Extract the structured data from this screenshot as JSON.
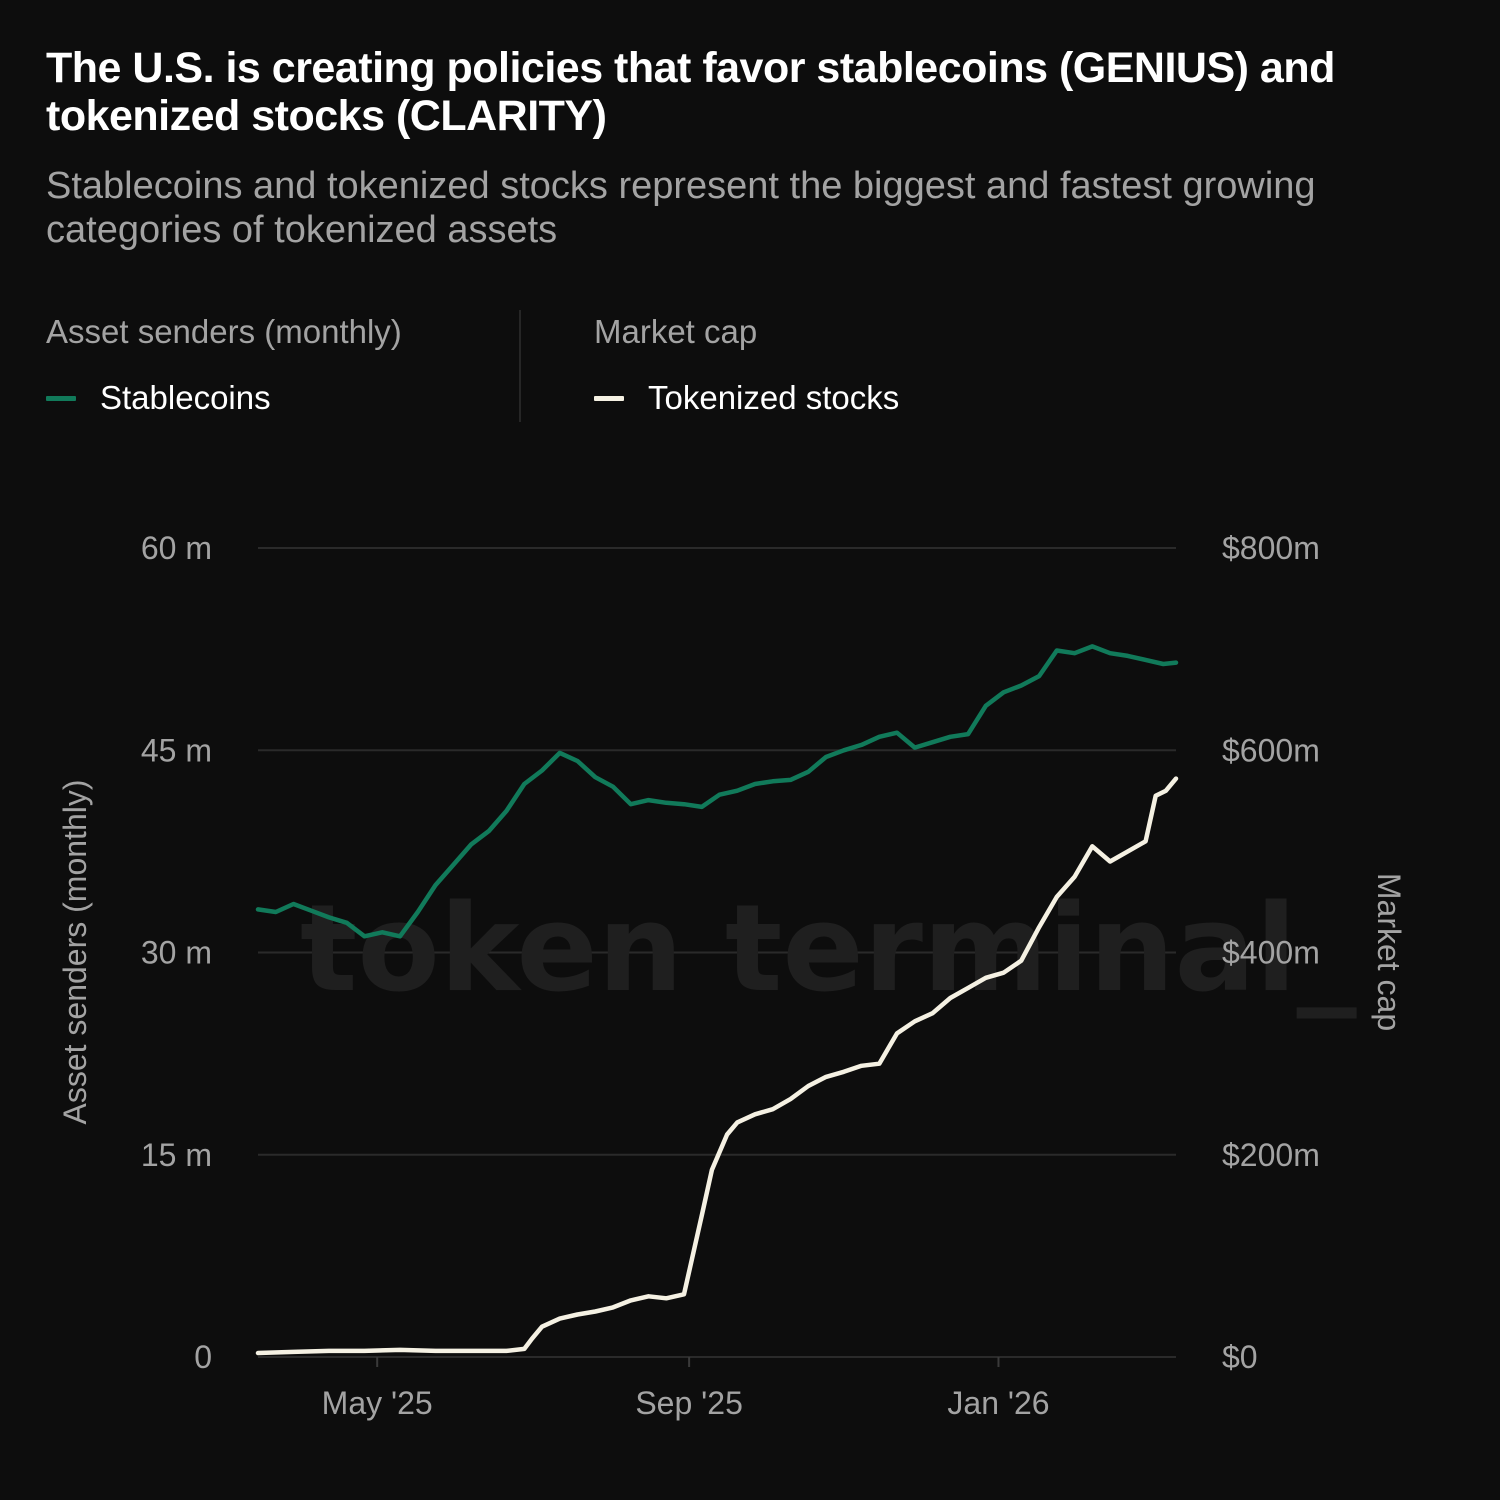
{
  "header": {
    "title": "The U.S. is creating policies that favor stablecoins (GENIUS) and tokenized stocks (CLARITY)",
    "subtitle": "Stablecoins and tokenized stocks represent the biggest and fastest growing categories of tokenized assets"
  },
  "legend": {
    "left_group": {
      "heading": "Asset senders (monthly)",
      "item": "Stablecoins"
    },
    "right_group": {
      "heading": "Market cap",
      "item": "Tokenized stocks"
    }
  },
  "watermark": "token terminal_",
  "colors": {
    "background": "#0d0d0d",
    "stablecoins": "#117a5a",
    "tokenized_stocks": "#f5f1e3",
    "grid": "#2a2a2a",
    "muted_text": "#a3a3a3"
  },
  "chart_data": {
    "type": "line",
    "title": "The U.S. is creating policies that favor stablecoins (GENIUS) and tokenized stocks (CLARITY)",
    "subtitle": "Stablecoins and tokenized stocks represent the biggest and fastest growing categories of tokenized assets",
    "xlabel": "",
    "x_tick_labels": [
      "May '25",
      "Sep '25",
      "Jan '26"
    ],
    "x_tick_dates": [
      "2025-05-01",
      "2025-09-01",
      "2026-01-01"
    ],
    "x_range": [
      "2025-03-15",
      "2026-03-12"
    ],
    "y_left": {
      "label": "Asset senders (monthly)",
      "range": [
        0,
        60
      ],
      "unit": "m",
      "tick_labels": [
        "0",
        "15 m",
        "30 m",
        "45 m",
        "60 m"
      ],
      "tick_values": [
        0,
        15,
        30,
        45,
        60
      ]
    },
    "y_right": {
      "label": "Market cap",
      "range": [
        0,
        800
      ],
      "unit": "$m",
      "tick_labels": [
        "$0",
        "$200m",
        "$400m",
        "$600m",
        "$800m"
      ],
      "tick_values": [
        0,
        200,
        400,
        600,
        800
      ]
    },
    "grid": true,
    "legend_position": "top-left",
    "series": [
      {
        "name": "Stablecoins",
        "axis": "left",
        "x": [
          "2025-03-15",
          "2025-03-22",
          "2025-03-29",
          "2025-04-05",
          "2025-04-12",
          "2025-04-19",
          "2025-04-26",
          "2025-05-03",
          "2025-05-10",
          "2025-05-17",
          "2025-05-24",
          "2025-05-31",
          "2025-06-07",
          "2025-06-14",
          "2025-06-21",
          "2025-06-28",
          "2025-07-05",
          "2025-07-12",
          "2025-07-19",
          "2025-07-26",
          "2025-08-02",
          "2025-08-09",
          "2025-08-16",
          "2025-08-23",
          "2025-08-30",
          "2025-09-06",
          "2025-09-13",
          "2025-09-20",
          "2025-09-27",
          "2025-10-04",
          "2025-10-11",
          "2025-10-18",
          "2025-10-25",
          "2025-11-01",
          "2025-11-08",
          "2025-11-15",
          "2025-11-22",
          "2025-11-29",
          "2025-12-06",
          "2025-12-13",
          "2025-12-20",
          "2025-12-27",
          "2026-01-03",
          "2026-01-10",
          "2026-01-17",
          "2026-01-24",
          "2026-01-31",
          "2026-02-07",
          "2026-02-14",
          "2026-02-21",
          "2026-02-28",
          "2026-03-07",
          "2026-03-12"
        ],
        "values": [
          33.2,
          33.0,
          33.6,
          33.1,
          32.6,
          32.2,
          31.2,
          31.5,
          31.2,
          33.0,
          35.0,
          36.5,
          38.0,
          39.0,
          40.5,
          42.5,
          43.5,
          44.8,
          44.2,
          43.0,
          42.3,
          41.0,
          41.3,
          41.1,
          41.0,
          40.8,
          41.7,
          42.0,
          42.5,
          42.7,
          42.8,
          43.4,
          44.5,
          45.0,
          45.4,
          46.0,
          46.3,
          45.2,
          45.6,
          46.0,
          46.2,
          48.3,
          49.3,
          49.8,
          50.5,
          52.4,
          52.2,
          52.7,
          52.2,
          52.0,
          51.7,
          51.4,
          51.5
        ]
      },
      {
        "name": "Tokenized stocks",
        "axis": "right",
        "x": [
          "2025-03-15",
          "2025-03-29",
          "2025-04-12",
          "2025-04-26",
          "2025-05-10",
          "2025-05-24",
          "2025-06-07",
          "2025-06-21",
          "2025-06-28",
          "2025-07-01",
          "2025-07-05",
          "2025-07-12",
          "2025-07-19",
          "2025-07-26",
          "2025-08-02",
          "2025-08-09",
          "2025-08-16",
          "2025-08-23",
          "2025-08-30",
          "2025-09-06",
          "2025-09-10",
          "2025-09-16",
          "2025-09-20",
          "2025-09-27",
          "2025-10-04",
          "2025-10-11",
          "2025-10-18",
          "2025-10-25",
          "2025-11-01",
          "2025-11-08",
          "2025-11-15",
          "2025-11-22",
          "2025-11-29",
          "2025-12-06",
          "2025-12-13",
          "2025-12-20",
          "2025-12-27",
          "2026-01-03",
          "2026-01-10",
          "2026-01-17",
          "2026-01-24",
          "2026-01-31",
          "2026-02-07",
          "2026-02-14",
          "2026-02-21",
          "2026-02-28",
          "2026-03-04",
          "2026-03-08",
          "2026-03-12"
        ],
        "values": [
          4,
          5,
          6,
          6,
          7,
          6,
          6,
          6,
          8,
          18,
          30,
          38,
          42,
          45,
          49,
          56,
          60,
          58,
          62,
          140,
          185,
          220,
          232,
          240,
          245,
          255,
          268,
          277,
          282,
          288,
          290,
          320,
          332,
          340,
          355,
          365,
          375,
          380,
          392,
          425,
          455,
          475,
          505,
          490,
          500,
          510,
          555,
          560,
          572
        ]
      }
    ]
  }
}
